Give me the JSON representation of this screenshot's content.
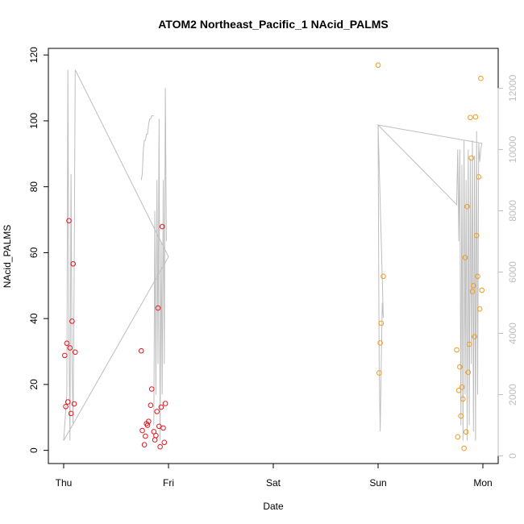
{
  "chart_data": {
    "type": "scatter",
    "title": "ATOM2 Northeast_Pacific_1 NAcid_PALMS",
    "xlabel": "Date",
    "ylabel": "NAcid_PALMS",
    "x_ticks": [
      "Thu",
      "Fri",
      "Sat",
      "Sun",
      "Mon"
    ],
    "xlim_days": [
      0,
      4
    ],
    "ylim": [
      -4,
      122
    ],
    "y_ticks": [
      0,
      20,
      40,
      60,
      80,
      100,
      120
    ],
    "y2_ticks": [
      0,
      2000,
      4000,
      6000,
      8000,
      10000,
      12000
    ],
    "y2lim": [
      -250,
      13300
    ],
    "colors": {
      "series_red": "#e8141c",
      "series_orange": "#f39a1e",
      "line": "#bebebe",
      "axis": "#000000"
    },
    "series": [
      {
        "color": "red",
        "points": [
          [
            0.01,
            28.8
          ],
          [
            0.02,
            13.3
          ],
          [
            0.03,
            32.5
          ],
          [
            0.04,
            14.7
          ],
          [
            0.05,
            69.7
          ],
          [
            0.06,
            31.1
          ],
          [
            0.07,
            11.2
          ],
          [
            0.08,
            39.2
          ],
          [
            0.09,
            56.6
          ],
          [
            0.1,
            14.1
          ],
          [
            0.11,
            29.8
          ],
          [
            0.74,
            30.2
          ],
          [
            0.75,
            6.0
          ],
          [
            0.77,
            1.7
          ],
          [
            0.78,
            4.3
          ],
          [
            0.79,
            8.1
          ],
          [
            0.8,
            7.6
          ],
          [
            0.81,
            8.8
          ],
          [
            0.83,
            13.7
          ],
          [
            0.84,
            18.6
          ],
          [
            0.86,
            5.7
          ],
          [
            0.87,
            3.2
          ],
          [
            0.88,
            4.5
          ],
          [
            0.89,
            11.8
          ],
          [
            0.9,
            43.2
          ],
          [
            0.91,
            7.3
          ],
          [
            0.92,
            1.1
          ],
          [
            0.93,
            13.1
          ],
          [
            0.94,
            67.9
          ],
          [
            0.95,
            6.8
          ],
          [
            0.96,
            2.4
          ],
          [
            0.97,
            14.2
          ]
        ]
      },
      {
        "color": "orange",
        "points": [
          [
            3.0,
            116.9
          ],
          [
            3.01,
            23.5
          ],
          [
            3.02,
            32.6
          ],
          [
            3.03,
            38.6
          ],
          [
            3.05,
            52.8
          ],
          [
            3.75,
            30.5
          ],
          [
            3.76,
            4.1
          ],
          [
            3.77,
            18.2
          ],
          [
            3.78,
            25.3
          ],
          [
            3.79,
            10.4
          ],
          [
            3.8,
            19.2
          ],
          [
            3.81,
            15.6
          ],
          [
            3.82,
            0.6
          ],
          [
            3.83,
            58.5
          ],
          [
            3.84,
            5.6
          ],
          [
            3.85,
            74.0
          ],
          [
            3.86,
            23.7
          ],
          [
            3.87,
            32.2
          ],
          [
            3.88,
            101.0
          ],
          [
            3.89,
            88.7
          ],
          [
            3.9,
            48.2
          ],
          [
            3.91,
            50.0
          ],
          [
            3.92,
            34.5
          ],
          [
            3.93,
            101.2
          ],
          [
            3.94,
            65.2
          ],
          [
            3.95,
            52.8
          ],
          [
            3.96,
            83.0
          ],
          [
            3.97,
            42.9
          ],
          [
            3.98,
            112.9
          ],
          [
            3.99,
            48.6
          ]
        ]
      }
    ],
    "line_right_axis": {
      "color": "gray",
      "segments": [
        [
          [
            0.0,
            500
          ],
          [
            0.03,
            2000
          ],
          [
            0.04,
            12600
          ],
          [
            0.05,
            4000
          ],
          [
            0.06,
            500
          ],
          [
            0.07,
            9200
          ],
          [
            0.08,
            3000
          ],
          [
            0.09,
            1000
          ],
          [
            0.1,
            6000
          ],
          [
            0.11,
            12600
          ],
          [
            1.0,
            6500
          ],
          [
            0.0,
            500
          ]
        ],
        [
          [
            0.74,
            9000
          ],
          [
            0.75,
            9200
          ],
          [
            0.76,
            10000
          ],
          [
            0.77,
            10300
          ],
          [
            0.78,
            10300
          ],
          [
            0.79,
            10500
          ],
          [
            0.8,
            10500
          ],
          [
            0.81,
            10800
          ],
          [
            0.82,
            11000
          ],
          [
            0.83,
            11000
          ],
          [
            0.84,
            11100
          ],
          [
            0.85,
            11100
          ],
          [
            0.86,
            11100
          ]
        ],
        [
          [
            0.86,
            1000
          ],
          [
            0.87,
            8000
          ],
          [
            0.88,
            2000
          ],
          [
            0.89,
            9000
          ],
          [
            0.9,
            3000
          ],
          [
            0.91,
            11000
          ],
          [
            0.92,
            500
          ],
          [
            0.93,
            7000
          ],
          [
            0.94,
            2000
          ],
          [
            0.95,
            9000
          ],
          [
            0.96,
            3000
          ],
          [
            0.97,
            12000
          ],
          [
            0.98,
            7000
          ]
        ],
        [
          [
            3.0,
            10800
          ],
          [
            3.01,
            3000
          ],
          [
            3.02,
            800
          ],
          [
            3.03,
            3000
          ],
          [
            3.04,
            5000
          ],
          [
            3.05,
            4500
          ],
          [
            3.0,
            10800
          ],
          [
            3.75,
            8200
          ],
          [
            3.76,
            10000
          ],
          [
            3.77,
            7000
          ],
          [
            3.78,
            10000
          ],
          [
            3.79,
            1000
          ],
          [
            3.8,
            9500
          ],
          [
            3.81,
            500
          ],
          [
            3.82,
            10300
          ],
          [
            3.83,
            2000
          ],
          [
            3.84,
            9000
          ],
          [
            3.85,
            500
          ],
          [
            3.86,
            10000
          ],
          [
            3.87,
            1000
          ],
          [
            3.88,
            9700
          ],
          [
            3.89,
            3000
          ],
          [
            3.9,
            10300
          ],
          [
            3.91,
            800
          ],
          [
            3.92,
            9800
          ],
          [
            3.93,
            500
          ],
          [
            3.94,
            10600
          ],
          [
            3.95,
            2000
          ],
          [
            3.96,
            10200
          ],
          [
            3.97,
            9600
          ],
          [
            3.98,
            10000
          ],
          [
            3.99,
            10200
          ],
          [
            3.0,
            10800
          ]
        ]
      ]
    }
  }
}
